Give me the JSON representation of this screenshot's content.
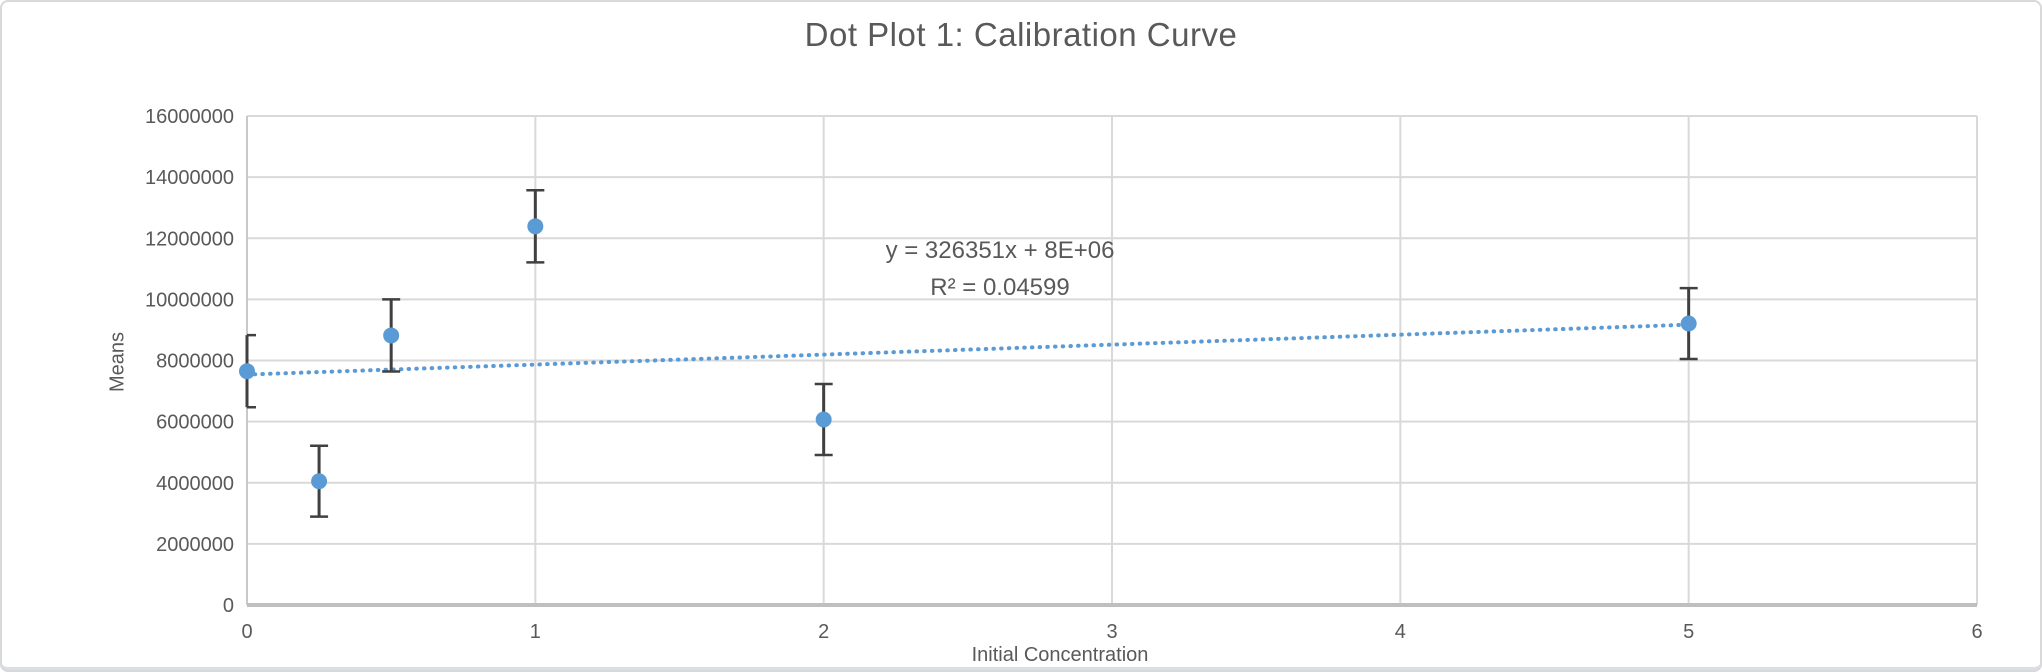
{
  "chart_data": {
    "type": "scatter",
    "title": "Dot Plot 1: Calibration Curve",
    "xlabel": "Initial Concentration",
    "ylabel": "Means",
    "xlim": [
      0,
      6
    ],
    "ylim": [
      0,
      16000000
    ],
    "x_ticks": [
      0,
      1,
      2,
      3,
      4,
      5,
      6
    ],
    "y_ticks": [
      0,
      2000000,
      4000000,
      6000000,
      8000000,
      10000000,
      12000000,
      14000000,
      16000000
    ],
    "grid": true,
    "legend": "none",
    "points": [
      {
        "x": 0,
        "y": 7650000,
        "error": 1180000
      },
      {
        "x": 0.25,
        "y": 4050000,
        "error": 1160000
      },
      {
        "x": 0.5,
        "y": 8820000,
        "error": 1180000
      },
      {
        "x": 1,
        "y": 12390000,
        "error": 1180000
      },
      {
        "x": 2,
        "y": 6070000,
        "error": 1160000
      },
      {
        "x": 5,
        "y": 9210000,
        "error": 1160000
      }
    ],
    "trendline": {
      "slope": 326351,
      "intercept": 7540000,
      "x_start": 0,
      "x_end": 5,
      "style": "dotted",
      "label": "y = 326351x + 8E+06",
      "r2_label": "R² = 0.04599"
    },
    "colors": {
      "marker": "#5B9BD5",
      "trendline": "#5B9BD5",
      "error_bar": "#404040",
      "gridline": "#D9D9D9",
      "axis_line": "#BFBFBF",
      "text": "#595959"
    }
  }
}
